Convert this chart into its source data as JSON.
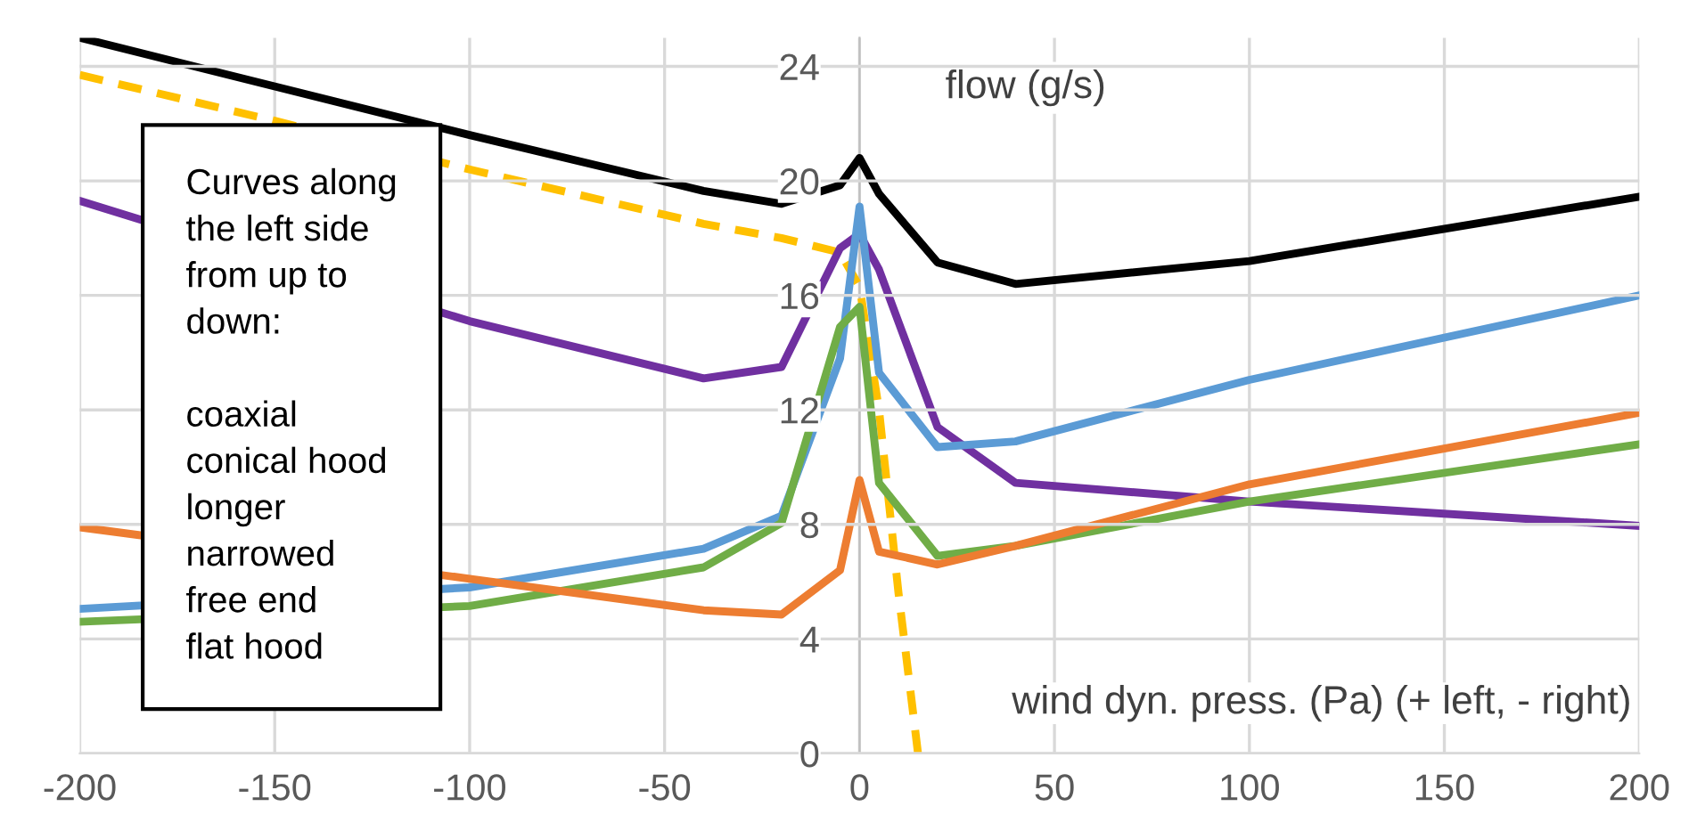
{
  "chart_data": {
    "type": "line",
    "xlabel": "wind dyn. press. (Pa) (+ left, - right)",
    "ylabel": "flow (g/s)",
    "annotations": [
      "Curves along\nthe left side\nfrom up to\ndown:\n\ncoaxial\nconical hood\nlonger\nnarrowed\nfree end\nflat hood"
    ],
    "xlim": [
      -200,
      200
    ],
    "xticks": [
      -200,
      -150,
      -100,
      -50,
      0,
      50,
      100,
      150,
      200
    ],
    "ylim": [
      0,
      25
    ],
    "yticks": [
      0,
      4,
      8,
      12,
      16,
      20,
      24
    ],
    "grid": true,
    "legend": false,
    "marker": "none",
    "series": [
      {
        "color": "#000000",
        "x": [
          -200,
          -100,
          -40,
          -20,
          -5,
          0,
          5,
          20,
          40,
          100,
          200
        ],
        "values": [
          25,
          21.6,
          19.65,
          19.2,
          19.85,
          20.8,
          19.55,
          17.15,
          16.4,
          17.2,
          19.45
        ]
      },
      {
        "color": "#ffc000",
        "line_style": "dashed",
        "x": [
          -200,
          -150,
          -100,
          -40,
          -20,
          -5,
          0,
          5,
          10,
          15
        ],
        "values": [
          23.7,
          22.1,
          20.4,
          18.5,
          18.0,
          17.5,
          16.3,
          12.0,
          5.6,
          0
        ]
      },
      {
        "color": "#7030a0",
        "x": [
          -200,
          -100,
          -40,
          -20,
          -5,
          0,
          5,
          20,
          40,
          100,
          200
        ],
        "values": [
          19.3,
          15.1,
          13.1,
          13.5,
          17.65,
          18.15,
          16.9,
          11.4,
          9.45,
          8.8,
          7.95
        ]
      },
      {
        "color": "#5b9bd5",
        "x": [
          -200,
          -100,
          -40,
          -20,
          -5,
          0,
          5,
          20,
          40,
          100,
          200
        ],
        "values": [
          5.05,
          5.8,
          7.15,
          8.3,
          13.8,
          19.1,
          13.3,
          10.7,
          10.9,
          13.05,
          16.0
        ]
      },
      {
        "color": "#70ad47",
        "x": [
          -200,
          -100,
          -40,
          -20,
          -5,
          0,
          5,
          20,
          40,
          100,
          200
        ],
        "values": [
          4.6,
          5.15,
          6.5,
          8.05,
          14.9,
          15.6,
          9.45,
          6.9,
          7.25,
          8.8,
          10.8
        ]
      },
      {
        "color": "#ed7d31",
        "x": [
          -200,
          -100,
          -40,
          -20,
          -5,
          0,
          5,
          20,
          40,
          100,
          200
        ],
        "values": [
          7.9,
          6.1,
          5.0,
          4.85,
          6.4,
          9.55,
          7.05,
          6.6,
          7.25,
          9.4,
          11.9
        ]
      }
    ]
  }
}
